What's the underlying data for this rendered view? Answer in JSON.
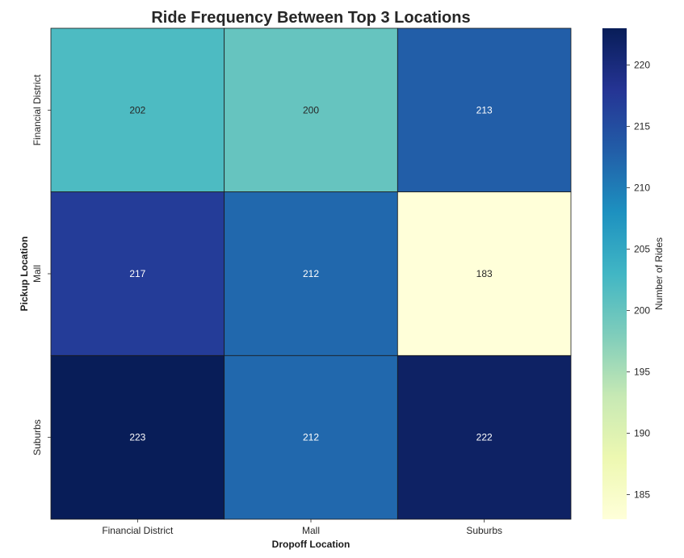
{
  "chart_data": {
    "type": "heatmap",
    "title": "Ride Frequency Between Top 3 Locations",
    "xlabel": "Dropoff Location",
    "ylabel": "Pickup Location",
    "x_categories": [
      "Financial District",
      "Mall",
      "Suburbs"
    ],
    "y_categories": [
      "Financial District",
      "Mall",
      "Suburbs"
    ],
    "values": [
      [
        202,
        200,
        213
      ],
      [
        217,
        212,
        183
      ],
      [
        223,
        212,
        222
      ]
    ],
    "colorbar": {
      "label": "Number of Rides",
      "range": [
        183,
        223
      ],
      "ticks": [
        185,
        190,
        195,
        200,
        205,
        210,
        215,
        220
      ],
      "colormap": "YlGnBu"
    },
    "grid": false
  }
}
